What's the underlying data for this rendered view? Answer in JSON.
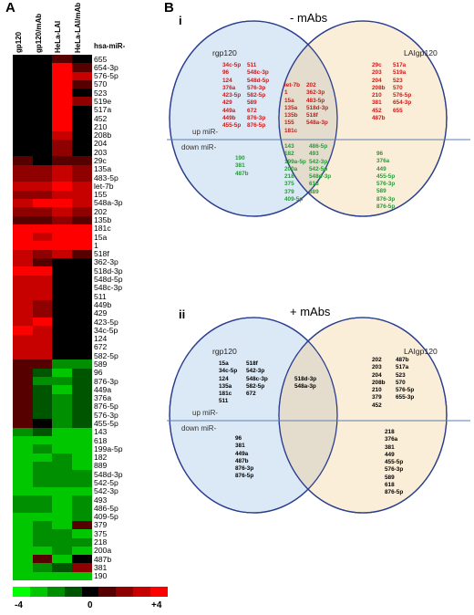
{
  "panel_a": {
    "letter": "A",
    "column_headers": [
      "gp120",
      "gp120/mAb",
      "HeLa-LAI",
      "HeLa-LAI/mAb"
    ],
    "row_header": "hsa-miR-",
    "rows": [
      {
        "mir": "655",
        "v": [
          0,
          0,
          1,
          0
        ]
      },
      {
        "mir": "654-3p",
        "v": [
          0,
          0,
          4,
          1
        ]
      },
      {
        "mir": "576-5p",
        "v": [
          0,
          0,
          4,
          3
        ]
      },
      {
        "mir": "570",
        "v": [
          0,
          0,
          4,
          1
        ]
      },
      {
        "mir": "523",
        "v": [
          0,
          0,
          4,
          0
        ]
      },
      {
        "mir": "519e",
        "v": [
          0,
          0,
          4,
          2
        ]
      },
      {
        "mir": "517a",
        "v": [
          0,
          0,
          4,
          0
        ]
      },
      {
        "mir": "452",
        "v": [
          0,
          0,
          4,
          0
        ]
      },
      {
        "mir": "210",
        "v": [
          0,
          0,
          4,
          0
        ]
      },
      {
        "mir": "208b",
        "v": [
          0,
          0,
          3,
          0
        ]
      },
      {
        "mir": "204",
        "v": [
          0,
          0,
          2,
          0
        ]
      },
      {
        "mir": "203",
        "v": [
          0,
          0,
          2,
          0
        ]
      },
      {
        "mir": "29c",
        "v": [
          1,
          0,
          1,
          1
        ]
      },
      {
        "mir": "135a",
        "v": [
          2,
          2,
          3,
          2
        ]
      },
      {
        "mir": "483-5p",
        "v": [
          2,
          2,
          3,
          2
        ]
      },
      {
        "mir": "let-7b",
        "v": [
          3,
          3,
          4,
          3
        ]
      },
      {
        "mir": "155",
        "v": [
          2,
          2,
          3,
          3
        ]
      },
      {
        "mir": "548a-3p",
        "v": [
          3,
          4,
          4,
          3
        ]
      },
      {
        "mir": "202",
        "v": [
          2,
          2,
          3,
          2
        ]
      },
      {
        "mir": "135b",
        "v": [
          1,
          1,
          2,
          1
        ]
      },
      {
        "mir": "181c",
        "v": [
          4,
          4,
          4,
          4
        ]
      },
      {
        "mir": "15a",
        "v": [
          4,
          3,
          4,
          4
        ]
      },
      {
        "mir": "1",
        "v": [
          4,
          4,
          4,
          4
        ]
      },
      {
        "mir": "518f",
        "v": [
          3,
          2,
          3,
          1
        ]
      },
      {
        "mir": "362-3p",
        "v": [
          3,
          1,
          0,
          0
        ]
      },
      {
        "mir": "518d-3p",
        "v": [
          4,
          4,
          0,
          0
        ]
      },
      {
        "mir": "548d-5p",
        "v": [
          3,
          3,
          0,
          0
        ]
      },
      {
        "mir": "548c-3p",
        "v": [
          3,
          3,
          0,
          0
        ]
      },
      {
        "mir": "511",
        "v": [
          3,
          3,
          0,
          0
        ]
      },
      {
        "mir": "449b",
        "v": [
          3,
          2,
          0,
          0
        ]
      },
      {
        "mir": "429",
        "v": [
          3,
          2,
          0,
          0
        ]
      },
      {
        "mir": "423-5p",
        "v": [
          3,
          4,
          0,
          0
        ]
      },
      {
        "mir": "34c-5p",
        "v": [
          4,
          3,
          0,
          0
        ]
      },
      {
        "mir": "124",
        "v": [
          3,
          3,
          0,
          0
        ]
      },
      {
        "mir": "672",
        "v": [
          3,
          3,
          0,
          0
        ]
      },
      {
        "mir": "582-5p",
        "v": [
          3,
          3,
          0,
          0
        ]
      },
      {
        "mir": "589",
        "v": [
          1,
          1,
          -2,
          -2
        ]
      },
      {
        "mir": "96",
        "v": [
          1,
          -1,
          -3,
          -1
        ]
      },
      {
        "mir": "876-3p",
        "v": [
          1,
          -2,
          -2,
          -1
        ]
      },
      {
        "mir": "449a",
        "v": [
          1,
          -1,
          -3,
          -1
        ]
      },
      {
        "mir": "376a",
        "v": [
          1,
          -1,
          -2,
          -1
        ]
      },
      {
        "mir": "876-5p",
        "v": [
          1,
          -1,
          -2,
          -1
        ]
      },
      {
        "mir": "576-3p",
        "v": [
          1,
          -1,
          -2,
          -1
        ]
      },
      {
        "mir": "455-5p",
        "v": [
          1,
          0,
          -2,
          -1
        ]
      },
      {
        "mir": "143",
        "v": [
          -2,
          -1,
          -3,
          -3
        ]
      },
      {
        "mir": "618",
        "v": [
          -3,
          -3,
          -3,
          -3
        ]
      },
      {
        "mir": "199a-5p",
        "v": [
          -3,
          -2,
          -3,
          -3
        ]
      },
      {
        "mir": "182",
        "v": [
          -3,
          -3,
          -2,
          -3
        ]
      },
      {
        "mir": "889",
        "v": [
          -3,
          -2,
          -2,
          -3
        ]
      },
      {
        "mir": "548d-3p",
        "v": [
          -3,
          -2,
          -2,
          -2
        ]
      },
      {
        "mir": "542-5p",
        "v": [
          -3,
          -2,
          -2,
          -2
        ]
      },
      {
        "mir": "542-3p",
        "v": [
          -3,
          -3,
          -3,
          -3
        ]
      },
      {
        "mir": "493",
        "v": [
          -2,
          -2,
          -3,
          -2
        ]
      },
      {
        "mir": "486-5p",
        "v": [
          -2,
          -2,
          -3,
          -2
        ]
      },
      {
        "mir": "409-5p",
        "v": [
          -3,
          -3,
          -3,
          -2
        ]
      },
      {
        "mir": "379",
        "v": [
          -3,
          -2,
          -3,
          1
        ]
      },
      {
        "mir": "375",
        "v": [
          -3,
          -2,
          -2,
          -3
        ]
      },
      {
        "mir": "218",
        "v": [
          -3,
          -2,
          -2,
          -2
        ]
      },
      {
        "mir": "200a",
        "v": [
          -3,
          -3,
          -2,
          -3
        ]
      },
      {
        "mir": "487b",
        "v": [
          -3,
          1,
          -3,
          0
        ]
      },
      {
        "mir": "381",
        "v": [
          -3,
          -2,
          -1,
          2
        ]
      },
      {
        "mir": "190",
        "v": [
          -3,
          -3,
          -3,
          -3
        ]
      }
    ],
    "scale": {
      "min_label": "-4",
      "mid_label": "0",
      "max_label": "+4"
    }
  },
  "panel_b": {
    "letter": "B",
    "venn_i": {
      "roman": "i",
      "title": "- mAbs",
      "left_set": "rgp120",
      "right_set": "LAIgp120",
      "up_label": "up miR-",
      "down_label": "down miR-",
      "left_up_col1": [
        "34c-5p",
        "96",
        "124",
        "376a",
        "423-5p",
        "429",
        "449a",
        "449b",
        "455-5p"
      ],
      "left_up_col2": [
        "511",
        "548c-3p",
        "548d-5p",
        "576-3p",
        "582-5p",
        "589",
        "672",
        "876-3p",
        "876-5p"
      ],
      "mid_up_col1": [
        "let-7b",
        "1",
        "15a",
        "135a",
        "135b",
        "155",
        "181c"
      ],
      "mid_up_col2": [
        "202",
        "362-3p",
        "483-5p",
        "518d-3p",
        "518f",
        "548a-3p"
      ],
      "right_up_col1": [
        "29c",
        "203",
        "204",
        "208b",
        "210",
        "381",
        "452",
        "487b"
      ],
      "right_up_col2": [
        "517a",
        "519a",
        "523",
        "570",
        "576-5p",
        "654-3p",
        "655"
      ],
      "left_down": [
        "190",
        "381",
        "487b"
      ],
      "mid_down_col1": [
        "143",
        "182",
        "199a-5p",
        "200a",
        "218",
        "375",
        "379",
        "409-5p"
      ],
      "mid_down_col2": [
        "486-5p",
        "493",
        "542-3p",
        "542-5p",
        "548d-3p",
        "618",
        "889"
      ],
      "right_down": [
        "96",
        "376a",
        "449",
        "455-5p",
        "576-3p",
        "589",
        "876-3p",
        "876-5p"
      ]
    },
    "venn_ii": {
      "roman": "ii",
      "title": "+ mAbs",
      "left_set": "rgp120",
      "right_set": "LAIgp120",
      "up_label": "up miR-",
      "down_label": "down miR-",
      "left_up_col1": [
        "15a",
        "34c-5p",
        "124",
        "135a",
        "181c",
        "511"
      ],
      "left_up_col2": [
        "518f",
        "542-3p",
        "548c-3p",
        "582-5p",
        "672"
      ],
      "mid_up": [
        "518d-3p",
        "548a-3p"
      ],
      "right_up_col1": [
        "202",
        "203",
        "204",
        "208b",
        "210",
        "379",
        "452"
      ],
      "right_up_col2": [
        "487b",
        "517a",
        "523",
        "570",
        "576-5p",
        "655-3p"
      ],
      "left_down": [
        "96",
        "381",
        "449a",
        "487b",
        "876-3p",
        "876-5p"
      ],
      "right_down": [
        "218",
        "376a",
        "381",
        "449",
        "455-5p",
        "576-3p",
        "589",
        "618",
        "876-5p"
      ]
    },
    "colors": {
      "up": "#cc1a1a",
      "down": "#2a9a3c",
      "neutral": "#000000",
      "left_fill": "#dbe8f5",
      "right_fill": "#fbeed8",
      "overlap_fill": "#e4dccd",
      "circle_stroke": "#2b3f8f",
      "divider": "#5b7fb0"
    }
  }
}
